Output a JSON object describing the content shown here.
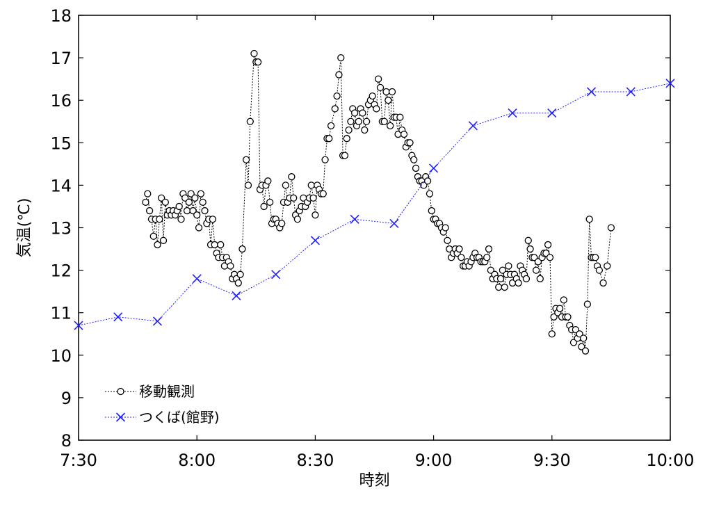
{
  "chart_data": {
    "type": "line",
    "xlabel": "時刻",
    "ylabel": "気温(℃)",
    "x_ticks": [
      "7:30",
      "8:00",
      "8:30",
      "9:00",
      "9:30",
      "10:00"
    ],
    "y_ticks": [
      "8",
      "9",
      "10",
      "11",
      "12",
      "13",
      "14",
      "15",
      "16",
      "17",
      "18"
    ],
    "xlim": [
      "7:30",
      "10:00"
    ],
    "ylim": [
      8,
      18
    ],
    "grid": false,
    "legend_position": "lower-left",
    "series": [
      {
        "name": "移動観測",
        "color": "#000000",
        "marker": "circle",
        "line_style": "dotted",
        "points": [
          [
            "7:47:00",
            13.6
          ],
          [
            "7:47:30",
            13.8
          ],
          [
            "7:48:00",
            13.4
          ],
          [
            "7:48:30",
            13.2
          ],
          [
            "7:49:00",
            12.8
          ],
          [
            "7:49:30",
            13.2
          ],
          [
            "7:50:00",
            12.6
          ],
          [
            "7:50:30",
            13.2
          ],
          [
            "7:51:00",
            13.7
          ],
          [
            "7:51:30",
            12.7
          ],
          [
            "7:52:00",
            13.6
          ],
          [
            "7:52:30",
            13.3
          ],
          [
            "7:53:00",
            13.4
          ],
          [
            "7:53:30",
            13.3
          ],
          [
            "7:54:00",
            13.4
          ],
          [
            "7:54:30",
            13.3
          ],
          [
            "7:55:00",
            13.4
          ],
          [
            "7:55:30",
            13.5
          ],
          [
            "7:56:00",
            13.2
          ],
          [
            "7:56:30",
            13.8
          ],
          [
            "7:57:00",
            13.7
          ],
          [
            "7:57:30",
            13.4
          ],
          [
            "7:58:00",
            13.6
          ],
          [
            "7:58:30",
            13.8
          ],
          [
            "7:59:00",
            13.4
          ],
          [
            "7:59:30",
            13.7
          ],
          [
            "8:00:00",
            13.3
          ],
          [
            "8:00:30",
            13.0
          ],
          [
            "8:01:00",
            13.8
          ],
          [
            "8:01:30",
            13.6
          ],
          [
            "8:02:00",
            13.4
          ],
          [
            "8:02:30",
            13.1
          ],
          [
            "8:03:00",
            13.2
          ],
          [
            "8:03:30",
            12.6
          ],
          [
            "8:04:00",
            13.2
          ],
          [
            "8:04:30",
            12.6
          ],
          [
            "8:05:00",
            12.4
          ],
          [
            "8:05:30",
            12.3
          ],
          [
            "8:06:00",
            12.6
          ],
          [
            "8:06:30",
            12.3
          ],
          [
            "8:07:00",
            12.1
          ],
          [
            "8:07:30",
            12.3
          ],
          [
            "8:08:00",
            12.2
          ],
          [
            "8:08:30",
            12.1
          ],
          [
            "8:09:00",
            11.8
          ],
          [
            "8:09:30",
            11.9
          ],
          [
            "8:10:00",
            11.8
          ],
          [
            "8:10:30",
            11.7
          ],
          [
            "8:11:00",
            11.9
          ],
          [
            "8:11:30",
            12.5
          ],
          [
            "8:12:30",
            14.6
          ],
          [
            "8:13:00",
            14.0
          ],
          [
            "8:13:30",
            15.5
          ],
          [
            "8:14:30",
            17.1
          ],
          [
            "8:15:00",
            16.9
          ],
          [
            "8:15:30",
            16.9
          ],
          [
            "8:16:00",
            13.9
          ],
          [
            "8:16:30",
            14.0
          ],
          [
            "8:17:00",
            13.5
          ],
          [
            "8:17:30",
            14.0
          ],
          [
            "8:18:00",
            14.1
          ],
          [
            "8:18:30",
            13.6
          ],
          [
            "8:19:00",
            13.1
          ],
          [
            "8:19:30",
            13.2
          ],
          [
            "8:20:00",
            13.2
          ],
          [
            "8:20:30",
            13.1
          ],
          [
            "8:21:00",
            13.0
          ],
          [
            "8:21:30",
            13.1
          ],
          [
            "8:22:00",
            13.6
          ],
          [
            "8:22:30",
            14.0
          ],
          [
            "8:23:00",
            13.6
          ],
          [
            "8:23:30",
            13.7
          ],
          [
            "8:24:00",
            14.2
          ],
          [
            "8:24:30",
            13.7
          ],
          [
            "8:25:00",
            13.3
          ],
          [
            "8:25:30",
            13.2
          ],
          [
            "8:26:00",
            13.4
          ],
          [
            "8:26:30",
            13.5
          ],
          [
            "8:27:00",
            13.7
          ],
          [
            "8:27:30",
            13.5
          ],
          [
            "8:28:00",
            13.6
          ],
          [
            "8:28:30",
            13.7
          ],
          [
            "8:29:00",
            14.0
          ],
          [
            "8:29:30",
            13.7
          ],
          [
            "8:30:00",
            13.3
          ],
          [
            "8:30:30",
            14.0
          ],
          [
            "8:31:00",
            13.9
          ],
          [
            "8:31:30",
            13.8
          ],
          [
            "8:32:00",
            13.8
          ],
          [
            "8:32:30",
            14.6
          ],
          [
            "8:33:00",
            15.1
          ],
          [
            "8:33:30",
            15.1
          ],
          [
            "8:34:00",
            15.4
          ],
          [
            "8:35:00",
            15.8
          ],
          [
            "8:35:30",
            16.1
          ],
          [
            "8:36:00",
            16.6
          ],
          [
            "8:36:30",
            17.0
          ],
          [
            "8:37:00",
            14.7
          ],
          [
            "8:37:30",
            14.7
          ],
          [
            "8:38:00",
            15.1
          ],
          [
            "8:38:30",
            15.3
          ],
          [
            "8:39:00",
            15.5
          ],
          [
            "8:39:30",
            15.8
          ],
          [
            "8:40:00",
            15.7
          ],
          [
            "8:40:30",
            15.4
          ],
          [
            "8:41:00",
            15.5
          ],
          [
            "8:41:30",
            15.8
          ],
          [
            "8:42:00",
            15.7
          ],
          [
            "8:42:30",
            15.3
          ],
          [
            "8:43:00",
            15.5
          ],
          [
            "8:43:30",
            15.9
          ],
          [
            "8:44:00",
            16.0
          ],
          [
            "8:44:30",
            16.1
          ],
          [
            "8:45:00",
            15.9
          ],
          [
            "8:45:30",
            15.8
          ],
          [
            "8:46:00",
            16.5
          ],
          [
            "8:46:30",
            16.3
          ],
          [
            "8:47:00",
            15.5
          ],
          [
            "8:47:30",
            15.5
          ],
          [
            "8:48:00",
            16.2
          ],
          [
            "8:48:30",
            16.0
          ],
          [
            "8:49:00",
            15.4
          ],
          [
            "8:49:30",
            16.2
          ],
          [
            "8:50:00",
            15.6
          ],
          [
            "8:50:30",
            15.6
          ],
          [
            "8:51:00",
            15.2
          ],
          [
            "8:51:30",
            15.6
          ],
          [
            "8:52:00",
            15.3
          ],
          [
            "8:52:30",
            15.2
          ],
          [
            "8:53:00",
            14.9
          ],
          [
            "8:53:30",
            15.0
          ],
          [
            "8:54:00",
            15.0
          ],
          [
            "8:54:30",
            14.7
          ],
          [
            "8:55:00",
            14.6
          ],
          [
            "8:55:30",
            14.4
          ],
          [
            "8:56:00",
            14.2
          ],
          [
            "8:56:30",
            14.1
          ],
          [
            "8:57:00",
            14.1
          ],
          [
            "8:57:30",
            14.0
          ],
          [
            "8:58:00",
            14.2
          ],
          [
            "8:58:30",
            14.1
          ],
          [
            "8:59:00",
            13.8
          ],
          [
            "8:59:30",
            13.4
          ],
          [
            "9:00:00",
            13.2
          ],
          [
            "9:00:30",
            13.2
          ],
          [
            "9:01:00",
            13.1
          ],
          [
            "9:01:30",
            13.1
          ],
          [
            "9:02:00",
            13.0
          ],
          [
            "9:02:30",
            12.9
          ],
          [
            "9:03:00",
            13.0
          ],
          [
            "9:03:30",
            12.7
          ],
          [
            "9:04:00",
            12.5
          ],
          [
            "9:04:30",
            12.3
          ],
          [
            "9:05:00",
            12.4
          ],
          [
            "9:05:30",
            12.5
          ],
          [
            "9:06:00",
            12.4
          ],
          [
            "9:06:30",
            12.5
          ],
          [
            "9:07:00",
            12.3
          ],
          [
            "9:07:30",
            12.1
          ],
          [
            "9:08:00",
            12.1
          ],
          [
            "9:08:30",
            12.2
          ],
          [
            "9:09:00",
            12.1
          ],
          [
            "9:09:30",
            12.2
          ],
          [
            "9:10:00",
            12.3
          ],
          [
            "9:10:30",
            12.4
          ],
          [
            "9:11:00",
            12.3
          ],
          [
            "9:11:30",
            12.3
          ],
          [
            "9:12:00",
            12.2
          ],
          [
            "9:12:30",
            12.2
          ],
          [
            "9:13:00",
            12.2
          ],
          [
            "9:13:30",
            12.3
          ],
          [
            "9:14:00",
            12.5
          ],
          [
            "9:14:30",
            12.0
          ],
          [
            "9:15:00",
            11.8
          ],
          [
            "9:15:30",
            11.9
          ],
          [
            "9:16:00",
            11.8
          ],
          [
            "9:16:30",
            11.6
          ],
          [
            "9:17:00",
            11.8
          ],
          [
            "9:17:30",
            12.0
          ],
          [
            "9:18:00",
            11.6
          ],
          [
            "9:18:30",
            11.9
          ],
          [
            "9:19:00",
            12.1
          ],
          [
            "9:19:30",
            11.9
          ],
          [
            "9:20:00",
            11.7
          ],
          [
            "9:20:30",
            11.9
          ],
          [
            "9:21:00",
            11.8
          ],
          [
            "9:21:30",
            11.7
          ],
          [
            "9:22:00",
            12.1
          ],
          [
            "9:22:30",
            12.0
          ],
          [
            "9:23:00",
            11.9
          ],
          [
            "9:23:30",
            11.8
          ],
          [
            "9:24:00",
            12.7
          ],
          [
            "9:24:30",
            12.5
          ],
          [
            "9:25:00",
            12.3
          ],
          [
            "9:25:30",
            12.3
          ],
          [
            "9:26:00",
            12.0
          ],
          [
            "9:26:30",
            12.2
          ],
          [
            "9:27:00",
            11.8
          ],
          [
            "9:27:30",
            12.3
          ],
          [
            "9:28:00",
            12.4
          ],
          [
            "9:28:30",
            12.4
          ],
          [
            "9:29:00",
            12.6
          ],
          [
            "9:29:30",
            12.3
          ],
          [
            "9:30:00",
            10.5
          ],
          [
            "9:30:30",
            10.9
          ],
          [
            "9:31:00",
            11.1
          ],
          [
            "9:31:30",
            11.0
          ],
          [
            "9:32:00",
            11.1
          ],
          [
            "9:32:30",
            10.9
          ],
          [
            "9:33:00",
            11.3
          ],
          [
            "9:33:30",
            10.9
          ],
          [
            "9:34:00",
            10.9
          ],
          [
            "9:34:30",
            10.7
          ],
          [
            "9:35:00",
            10.6
          ],
          [
            "9:35:30",
            10.3
          ],
          [
            "9:36:00",
            10.6
          ],
          [
            "9:36:30",
            10.4
          ],
          [
            "9:37:00",
            10.5
          ],
          [
            "9:37:30",
            10.2
          ],
          [
            "9:38:00",
            10.4
          ],
          [
            "9:38:30",
            10.1
          ],
          [
            "9:39:00",
            11.2
          ],
          [
            "9:39:30",
            13.2
          ],
          [
            "9:40:00",
            12.3
          ],
          [
            "9:40:30",
            12.3
          ],
          [
            "9:41:00",
            12.3
          ],
          [
            "9:41:30",
            12.1
          ],
          [
            "9:42:00",
            12.0
          ],
          [
            "9:43:00",
            11.7
          ],
          [
            "9:44:00",
            12.1
          ],
          [
            "9:45:00",
            13.0
          ]
        ]
      },
      {
        "name": "つくば(館野)",
        "color": "#1f1fff",
        "marker": "cross",
        "line_style": "dotted",
        "points": [
          [
            "7:30",
            10.7
          ],
          [
            "7:40",
            10.9
          ],
          [
            "7:50",
            10.8
          ],
          [
            "8:00",
            11.8
          ],
          [
            "8:10",
            11.4
          ],
          [
            "8:20",
            11.9
          ],
          [
            "8:30",
            12.7
          ],
          [
            "8:40",
            13.2
          ],
          [
            "8:50",
            13.1
          ],
          [
            "9:00",
            14.4
          ],
          [
            "9:10",
            15.4
          ],
          [
            "9:20",
            15.7
          ],
          [
            "9:30",
            15.7
          ],
          [
            "9:40",
            16.2
          ],
          [
            "9:50",
            16.2
          ],
          [
            "10:00",
            16.4
          ]
        ]
      }
    ]
  }
}
